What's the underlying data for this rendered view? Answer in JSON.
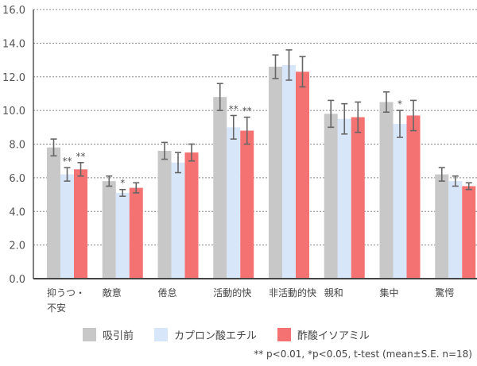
{
  "chart_data": {
    "type": "bar",
    "title": "",
    "xlabel": "",
    "ylabel": "",
    "ylim": [
      0,
      16
    ],
    "yticks": [
      "0.0",
      "2.0",
      "4.0",
      "6.0",
      "8.0",
      "10.0",
      "12.0",
      "14.0",
      "16.0"
    ],
    "grid": true,
    "categories": [
      [
        "抑うつ・",
        "不安"
      ],
      [
        "敵意"
      ],
      [
        "倦怠"
      ],
      [
        "活動的快"
      ],
      [
        "非活動的快"
      ],
      [
        "親和"
      ],
      [
        "集中"
      ],
      [
        "驚愕"
      ]
    ],
    "series": [
      {
        "name": "吸引前",
        "color": "#c8c8c8",
        "values": [
          7.8,
          5.8,
          7.6,
          10.8,
          12.6,
          9.8,
          10.5,
          6.2
        ],
        "errors": [
          0.5,
          0.3,
          0.5,
          0.8,
          0.7,
          0.8,
          0.6,
          0.4
        ],
        "sig": [
          "",
          "",
          "",
          "",
          "",
          "",
          "",
          ""
        ]
      },
      {
        "name": "カプロン酸エチル",
        "color": "#d8e6fa",
        "values": [
          6.2,
          5.1,
          6.9,
          9.0,
          12.7,
          9.5,
          9.2,
          5.8
        ],
        "errors": [
          0.4,
          0.2,
          0.6,
          0.7,
          0.9,
          0.9,
          0.8,
          0.3
        ],
        "sig": [
          "**",
          "*",
          "",
          "**",
          "",
          "",
          "*",
          ""
        ]
      },
      {
        "name": "酢酸イソアミル",
        "color": "#f47272",
        "values": [
          6.5,
          5.4,
          7.5,
          8.8,
          12.3,
          9.6,
          9.7,
          5.5
        ],
        "errors": [
          0.4,
          0.3,
          0.5,
          0.8,
          0.9,
          0.9,
          0.9,
          0.2
        ],
        "sig": [
          "**",
          "",
          "",
          "**",
          "",
          "",
          "",
          ""
        ]
      }
    ],
    "legend_position": "bottom",
    "note": "** p<0.01, *p<0.05, t-test (mean±S.E. n=18)"
  }
}
